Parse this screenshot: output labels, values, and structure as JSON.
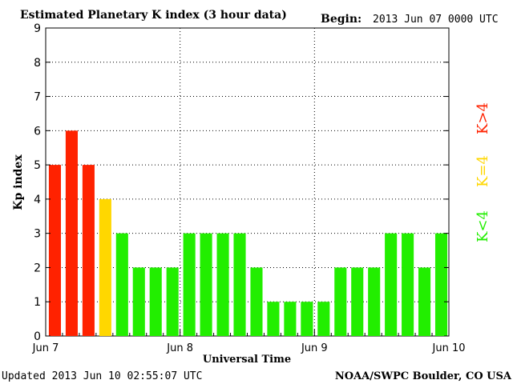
{
  "chart_data": {
    "type": "bar",
    "title": "Estimated Planetary K index (3 hour data)",
    "begin_label": "Begin:",
    "begin_value": "2013 Jun 07 0000 UTC",
    "ylabel": "Kp index",
    "xlabel": "Universal Time",
    "ylim": [
      0,
      9
    ],
    "y_ticks": [
      "0",
      "1",
      "2",
      "3",
      "4",
      "5",
      "6",
      "7",
      "8",
      "9"
    ],
    "x_tick_labels": [
      "Jun 7",
      "Jun 8",
      "Jun 9",
      "Jun 10"
    ],
    "grid": true,
    "values": [
      5,
      6,
      5,
      4,
      3,
      2,
      2,
      2,
      3,
      3,
      3,
      3,
      2,
      1,
      1,
      1,
      1,
      2,
      2,
      2,
      3,
      3,
      2,
      3
    ],
    "colors": {
      "below_4": "#22ee00",
      "equal_4": "#ffd700",
      "above_4": "#ff2200"
    },
    "legend": {
      "below": "K<4",
      "equal": "K=4",
      "above": "K>4",
      "placement": "right"
    },
    "updated": "Updated 2013 Jun 10 02:55:07 UTC",
    "credit": "NOAA/SWPC Boulder, CO USA"
  }
}
